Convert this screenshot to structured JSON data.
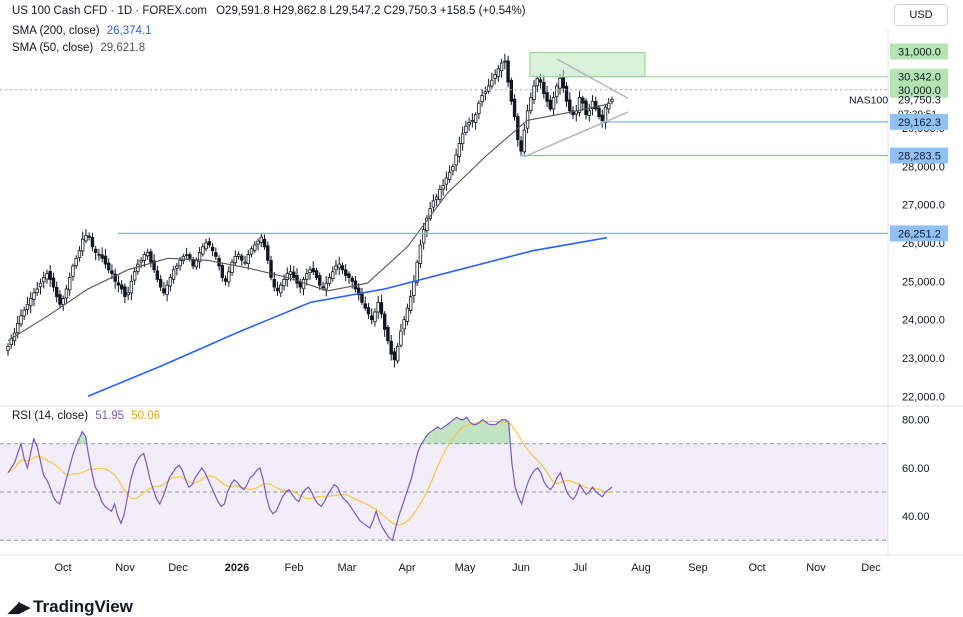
{
  "header": {
    "symbol_line": "US 100 Cash CFD · 1D · FOREX.com",
    "ohlc": "O29,591.8  H29,862.8  L29,547.2  C29,750.3  +158.5 (+0.54%)",
    "sma200_label": "SMA (200, close)",
    "sma200_value": "26,374.1",
    "sma50_label": "SMA (50, close)",
    "sma50_value": "29,621.8",
    "currency_button": "USD"
  },
  "rsi_legend": {
    "label": "RSI (14, close)",
    "rsi_value": "51.95",
    "ma_value": "50.06"
  },
  "footer": {
    "brand": "TradingView"
  },
  "colors": {
    "candle": "#131722",
    "sma200": "#2962ff",
    "sma50": "#555555",
    "rsi": "#7e57c2",
    "rsi_ma": "#f7c548",
    "horizontal_line": "#7fb2f0",
    "green_zone": "#b9e6b9"
  },
  "chart_data": {
    "type": "candlestick",
    "symbol": "NAS100",
    "x_axis_ticks": [
      "Oct",
      "Nov",
      "Dec",
      "2026",
      "Feb",
      "Mar",
      "Apr",
      "May",
      "Jun",
      "Jul",
      "Aug",
      "Sep",
      "Oct",
      "Nov",
      "Dec"
    ],
    "y_axis_ticks": [
      "22,000.0",
      "23,000.0",
      "24,000.0",
      "25,000.0",
      "26,000.0",
      "27,000.0",
      "28,000.0",
      "29,000.0",
      "30,000.0",
      "31,000.0"
    ],
    "ylim": [
      21850,
      31300
    ],
    "price_labels": [
      {
        "text": "31,000.0",
        "value": 31000,
        "style": "green"
      },
      {
        "text": "30,342.0",
        "value": 30342,
        "style": "green"
      },
      {
        "text": "30,000.0",
        "value": 30000,
        "style": "green"
      },
      {
        "text": "29,750.3",
        "value": 29750.3,
        "style": "plain",
        "sub": "07:39:51",
        "tag": "NAS100"
      },
      {
        "text": "29,162.3",
        "value": 29162.3,
        "style": "blue"
      },
      {
        "text": "28,283.5",
        "value": 28283.5,
        "style": "blue"
      },
      {
        "text": "26,251.2",
        "value": 26251.2,
        "style": "blue"
      }
    ],
    "horizontal_levels": [
      29162.3,
      28283.5,
      26251.2
    ],
    "closes": [
      23300,
      23500,
      23650,
      23900,
      24100,
      24250,
      24400,
      24550,
      24700,
      24800,
      24950,
      25100,
      25200,
      25050,
      24850,
      24600,
      24400,
      24550,
      24800,
      25100,
      25400,
      25600,
      25800,
      26100,
      26200,
      26150,
      25900,
      25750,
      25700,
      25600,
      25450,
      25300,
      25200,
      25000,
      24900,
      24800,
      24600,
      24700,
      25000,
      25250,
      25450,
      25550,
      25700,
      25750,
      25500,
      25300,
      25050,
      24850,
      24700,
      24900,
      25100,
      25300,
      25400,
      25550,
      25650,
      25700,
      25600,
      25400,
      25550,
      25750,
      25900,
      26000,
      25950,
      25800,
      25650,
      25400,
      25100,
      25000,
      25250,
      25500,
      25650,
      25700,
      25550,
      25500,
      25700,
      25850,
      25950,
      26050,
      26150,
      25900,
      25550,
      25100,
      24850,
      24750,
      24900,
      25050,
      25200,
      25250,
      25100,
      24950,
      24850,
      25050,
      25200,
      25300,
      25250,
      25100,
      24900,
      24850,
      24950,
      25100,
      25250,
      25400,
      25450,
      25300,
      25150,
      25100,
      25000,
      24800,
      24650,
      24450,
      24300,
      24150,
      24000,
      24200,
      24450,
      24150,
      23750,
      23450,
      23100,
      22950,
      23300,
      23700,
      24000,
      24300,
      24600,
      25000,
      25500,
      25950,
      26350,
      26650,
      26900,
      27100,
      27200,
      27400,
      27500,
      27700,
      27850,
      28000,
      28300,
      28600,
      28850,
      29050,
      29150,
      29200,
      29350,
      29650,
      29850,
      29950,
      30100,
      30250,
      30400,
      30550,
      30700,
      30750,
      30200,
      29700,
      29300,
      28700,
      28400,
      28950,
      29450,
      29800,
      30100,
      30300,
      30200,
      29900,
      29700,
      29500,
      29800,
      30100,
      30300,
      30050,
      29700,
      29450,
      29350,
      29450,
      29800,
      29650,
      29350,
      29450,
      29700,
      29500,
      29300,
      29200,
      29550,
      29650,
      29750
    ],
    "sma200": [
      22000,
      22800,
      23650,
      24450,
      24800,
      25300,
      25800,
      26140
    ],
    "sma50": [
      23450,
      24100,
      24800,
      25300,
      25600,
      25550,
      25350,
      25100,
      24750,
      24950,
      25900,
      27300,
      28300,
      29200,
      29400,
      29620
    ],
    "rsi": {
      "ylim": [
        28,
        84
      ],
      "ticks": [
        "80.00",
        "60.00",
        "40.00"
      ],
      "band": [
        30,
        70
      ],
      "values": [
        58,
        60,
        62,
        66,
        70,
        64,
        60,
        66,
        72,
        69,
        63,
        57,
        55,
        52,
        48,
        46,
        45,
        50,
        55,
        60,
        65,
        69,
        72,
        75,
        73,
        65,
        58,
        52,
        50,
        46,
        44,
        43,
        42,
        45,
        40,
        37,
        41,
        48,
        55,
        60,
        63,
        65,
        66,
        61,
        55,
        51,
        47,
        45,
        48,
        52,
        56,
        58,
        60,
        61,
        59,
        55,
        52,
        53,
        56,
        58,
        60,
        58,
        55,
        52,
        49,
        46,
        44,
        45,
        50,
        53,
        55,
        54,
        52,
        51,
        53,
        56,
        57,
        59,
        60,
        55,
        48,
        43,
        41,
        42,
        45,
        48,
        50,
        51,
        49,
        47,
        46,
        49,
        51,
        52,
        50,
        47,
        45,
        44,
        46,
        49,
        51,
        53,
        52,
        49,
        47,
        46,
        44,
        42,
        40,
        38,
        37,
        36,
        35,
        38,
        42,
        38,
        35,
        33,
        31,
        30,
        35,
        40,
        44,
        48,
        52,
        56,
        62,
        67,
        70,
        72,
        74,
        75,
        76,
        77,
        76,
        77,
        78,
        79,
        80,
        81,
        80,
        80,
        81,
        79,
        78,
        78,
        79,
        80,
        79,
        78,
        78,
        78,
        79,
        80,
        80,
        79,
        62,
        52,
        48,
        45,
        50,
        54,
        57,
        59,
        60,
        58,
        54,
        52,
        51,
        53,
        56,
        58,
        54,
        50,
        48,
        47,
        49,
        53,
        51,
        49,
        50,
        52,
        50,
        49,
        48,
        50,
        51,
        52
      ]
    }
  }
}
